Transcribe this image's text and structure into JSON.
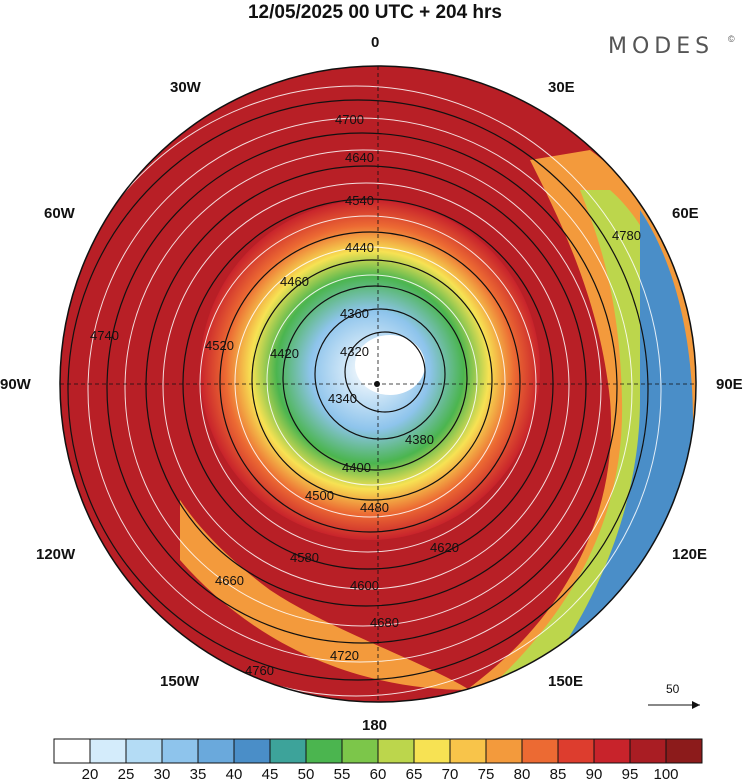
{
  "title": "12/05/2025  00 UTC  + 204 hrs",
  "brand": "MODES",
  "brand_mark": "©",
  "longitude_labels": {
    "top": "0",
    "bottom": "180",
    "left": "90W",
    "right": "90E",
    "nw30": "30W",
    "ne30": "30E",
    "nw60": "60W",
    "ne60": "60E",
    "sw120": "120W",
    "se120": "120E",
    "sw150": "150W",
    "se150": "150E"
  },
  "reference_vector_label": "50",
  "contour_labels": [
    "4320",
    "4340",
    "4360",
    "4380",
    "4400",
    "4420",
    "4440",
    "4460",
    "4480",
    "4500",
    "4520",
    "4540",
    "4580",
    "4600",
    "4620",
    "4640",
    "4660",
    "4680",
    "4700",
    "4720",
    "4740",
    "4760",
    "4780"
  ],
  "colorbar": {
    "labels": [
      "20",
      "25",
      "30",
      "35",
      "40",
      "45",
      "50",
      "55",
      "60",
      "65",
      "70",
      "75",
      "80",
      "85",
      "90",
      "95",
      "100"
    ],
    "colors": [
      "#ffffff",
      "#d4ecfb",
      "#b4dcf5",
      "#8ec4ec",
      "#6aa9dc",
      "#4a8ec8",
      "#3da39a",
      "#4bb54f",
      "#7cc64a",
      "#bcd64c",
      "#f7e253",
      "#f8c44a",
      "#f39a3c",
      "#ec6a33",
      "#dd3d2e",
      "#c8232b",
      "#a91d23",
      "#8c1b1b"
    ]
  }
}
